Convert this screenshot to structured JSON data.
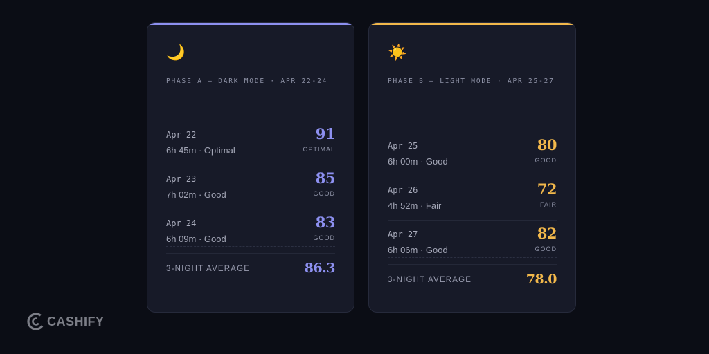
{
  "colors": {
    "background": "#0b0d15",
    "card": "#171a28",
    "phase_a_accent": "#8d90f0",
    "phase_b_accent": "#f2b84b"
  },
  "phase_a": {
    "icon": "crescent-moon-icon",
    "emoji": "🌙",
    "title": "PHASE A — DARK MODE · APR 22-24",
    "nights": [
      {
        "date": "Apr 22",
        "detail": "6h 45m · Optimal",
        "score": "91",
        "label": "OPTIMAL"
      },
      {
        "date": "Apr 23",
        "detail": "7h 02m · Good",
        "score": "85",
        "label": "GOOD"
      },
      {
        "date": "Apr 24",
        "detail": "6h 09m · Good",
        "score": "83",
        "label": "GOOD"
      }
    ],
    "average_label": "3-NIGHT AVERAGE",
    "average_value": "86.3"
  },
  "phase_b": {
    "icon": "sun-icon",
    "emoji": "☀️",
    "title": "PHASE B — LIGHT MODE · APR 25-27",
    "nights": [
      {
        "date": "Apr 25",
        "detail": "6h 00m · Good",
        "score": "80",
        "label": "GOOD"
      },
      {
        "date": "Apr 26",
        "detail": "4h 52m · Fair",
        "score": "72",
        "label": "FAIR"
      },
      {
        "date": "Apr 27",
        "detail": "6h 06m · Good",
        "score": "82",
        "label": "GOOD"
      }
    ],
    "average_label": "3-NIGHT AVERAGE",
    "average_value": "78.0"
  },
  "watermark": {
    "icon": "cashify-logo-icon",
    "text": "CASHIFY"
  }
}
